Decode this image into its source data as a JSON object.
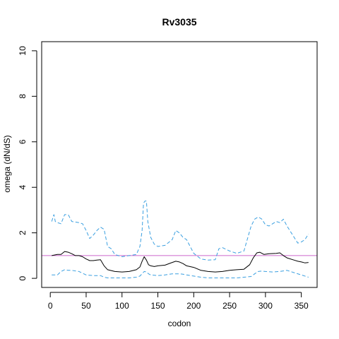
{
  "chart_data": {
    "type": "line",
    "title": "Rv3035",
    "xlabel": "codon",
    "ylabel": "omega (dN/dS)",
    "xlim": [
      -12,
      372
    ],
    "ylim": [
      -0.4,
      10.4
    ],
    "xticks": [
      0,
      50,
      100,
      150,
      200,
      250,
      300,
      350
    ],
    "yticks": [
      0,
      2,
      4,
      6,
      8,
      10
    ],
    "grid": false,
    "reference_line": {
      "y": 1,
      "color": "#cc66cc"
    },
    "series": [
      {
        "role": "estimate",
        "style": "solid",
        "color": "#000000",
        "x": [
          2,
          10,
          15,
          20,
          25,
          30,
          35,
          40,
          45,
          50,
          55,
          60,
          65,
          70,
          75,
          80,
          90,
          100,
          110,
          120,
          125,
          128,
          131,
          134,
          137,
          140,
          145,
          150,
          160,
          170,
          175,
          180,
          185,
          190,
          200,
          210,
          220,
          230,
          240,
          250,
          260,
          270,
          278,
          283,
          288,
          292,
          298,
          305,
          315,
          320,
          325,
          330,
          340,
          345,
          350,
          355,
          360
        ],
        "y": [
          1.0,
          1.05,
          1.05,
          1.18,
          1.15,
          1.08,
          1.0,
          1.0,
          0.95,
          0.85,
          0.78,
          0.78,
          0.8,
          0.82,
          0.55,
          0.38,
          0.3,
          0.28,
          0.3,
          0.38,
          0.5,
          0.75,
          0.95,
          0.8,
          0.6,
          0.55,
          0.52,
          0.55,
          0.58,
          0.7,
          0.75,
          0.72,
          0.65,
          0.55,
          0.48,
          0.35,
          0.3,
          0.28,
          0.3,
          0.35,
          0.38,
          0.4,
          0.6,
          0.9,
          1.12,
          1.15,
          1.05,
          1.08,
          1.1,
          1.12,
          1.0,
          0.9,
          0.8,
          0.75,
          0.72,
          0.68,
          0.7
        ]
      },
      {
        "role": "upper bound",
        "style": "dashed",
        "color": "#3a9fe0",
        "x": [
          2,
          5,
          7,
          10,
          15,
          20,
          25,
          30,
          40,
          45,
          50,
          55,
          60,
          65,
          70,
          75,
          80,
          85,
          90,
          100,
          110,
          120,
          125,
          128,
          130,
          132,
          134,
          136,
          140,
          145,
          150,
          160,
          170,
          175,
          180,
          185,
          190,
          200,
          210,
          220,
          230,
          235,
          240,
          250,
          260,
          270,
          280,
          285,
          290,
          295,
          300,
          305,
          310,
          315,
          320,
          325,
          330,
          340,
          345,
          350,
          355,
          360
        ],
        "y": [
          2.5,
          2.8,
          2.5,
          2.45,
          2.4,
          2.8,
          2.8,
          2.5,
          2.45,
          2.4,
          2.1,
          1.75,
          1.9,
          2.1,
          2.25,
          2.15,
          1.4,
          1.3,
          1.05,
          0.95,
          1.0,
          1.05,
          1.4,
          2.1,
          3.3,
          3.4,
          3.4,
          2.5,
          1.8,
          1.5,
          1.4,
          1.45,
          1.7,
          2.1,
          2.0,
          1.8,
          1.7,
          1.1,
          0.85,
          0.8,
          0.82,
          1.3,
          1.35,
          1.2,
          1.1,
          1.2,
          2.3,
          2.6,
          2.7,
          2.6,
          2.35,
          2.3,
          2.4,
          2.5,
          2.45,
          2.6,
          2.3,
          1.8,
          1.55,
          1.6,
          1.7,
          1.95
        ]
      },
      {
        "role": "lower bound",
        "style": "dashed",
        "color": "#3a9fe0",
        "x": [
          2,
          10,
          15,
          20,
          25,
          30,
          40,
          50,
          60,
          70,
          75,
          80,
          90,
          100,
          110,
          120,
          125,
          128,
          131,
          134,
          137,
          140,
          150,
          160,
          170,
          180,
          185,
          190,
          200,
          210,
          220,
          230,
          240,
          250,
          260,
          270,
          280,
          285,
          290,
          295,
          300,
          310,
          320,
          330,
          340,
          350,
          360
        ],
        "y": [
          0.15,
          0.15,
          0.3,
          0.38,
          0.35,
          0.35,
          0.3,
          0.15,
          0.12,
          0.12,
          0.05,
          0.02,
          0.02,
          0.02,
          0.02,
          0.05,
          0.1,
          0.2,
          0.3,
          0.28,
          0.2,
          0.15,
          0.12,
          0.15,
          0.2,
          0.2,
          0.18,
          0.15,
          0.1,
          0.05,
          0.02,
          0.02,
          0.02,
          0.02,
          0.02,
          0.05,
          0.08,
          0.2,
          0.3,
          0.32,
          0.3,
          0.28,
          0.3,
          0.35,
          0.25,
          0.15,
          0.05
        ]
      }
    ]
  }
}
